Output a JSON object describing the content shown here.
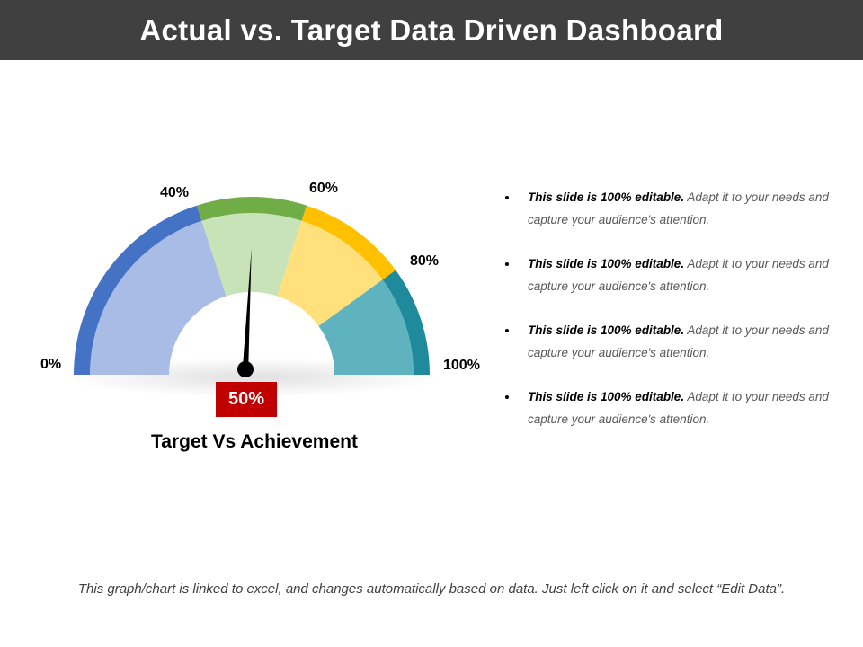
{
  "header": {
    "title": "Actual vs. Target Data Driven Dashboard"
  },
  "chart_data": {
    "type": "gauge",
    "title": "Target Vs Achievement",
    "value": 50,
    "value_label": "50%",
    "min": 0,
    "max": 100,
    "tick_labels": [
      "0%",
      "40%",
      "60%",
      "80%",
      "100%"
    ],
    "bands": [
      {
        "from": 0,
        "to": 40,
        "color": "#4472c4",
        "fill": "#a8bce6"
      },
      {
        "from": 40,
        "to": 60,
        "color": "#70ad47",
        "fill": "#c9e3b9"
      },
      {
        "from": 60,
        "to": 80,
        "color": "#ffc000",
        "fill": "#ffe07a"
      },
      {
        "from": 80,
        "to": 100,
        "color": "#1f8a9c",
        "fill": "#5fb3bf"
      }
    ]
  },
  "bullets": [
    {
      "bold": "This slide is 100% editable.",
      "text": " Adapt it to your needs and capture your audience's attention."
    },
    {
      "bold": "This slide is 100% editable.",
      "text": " Adapt it to your needs and capture your audience's attention."
    },
    {
      "bold": "This slide is 100% editable.",
      "text": " Adapt it to your needs and capture your audience's attention."
    },
    {
      "bold": "This slide is 100% editable.",
      "text": " Adapt it to your needs and capture your audience's attention."
    }
  ],
  "footer": {
    "text": "This graph/chart is linked to excel, and changes automatically based on data. Just left click on it and select “Edit Data”."
  }
}
